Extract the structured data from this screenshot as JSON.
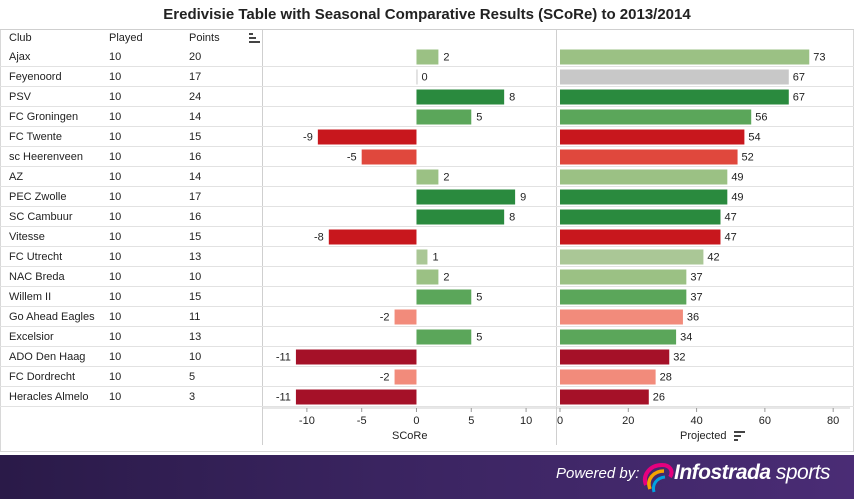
{
  "title": "Eredivisie Table with Seasonal Comparative Results (SCoRe) to 2013/2014",
  "columns": {
    "club": "Club",
    "played": "Played",
    "points": "Points"
  },
  "footer": {
    "powered_by": "Powered by:",
    "brand_bold": "Infostrada",
    "brand_light": " sports"
  },
  "chart_data": [
    {
      "type": "bar",
      "orientation": "horizontal",
      "xlabel": "SCoRe",
      "xlim": [
        -13,
        12
      ],
      "ticks": [
        -10,
        -5,
        0,
        5,
        10
      ],
      "categories": [
        "Ajax",
        "Feyenoord",
        "PSV",
        "FC Groningen",
        "FC Twente",
        "sc Heerenveen",
        "AZ",
        "PEC Zwolle",
        "SC Cambuur",
        "Vitesse",
        "FC Utrecht",
        "NAC Breda",
        "Willem II",
        "Go Ahead Eagles",
        "Excelsior",
        "ADO Den Haag",
        "FC Dordrecht",
        "Heracles Almelo"
      ],
      "values": [
        2,
        0,
        8,
        5,
        -9,
        -5,
        2,
        9,
        8,
        -8,
        1,
        2,
        5,
        -2,
        5,
        -11,
        -2,
        -11
      ]
    },
    {
      "type": "bar",
      "orientation": "horizontal",
      "xlabel": "Projected",
      "xlim": [
        0,
        82
      ],
      "ticks": [
        0,
        20,
        40,
        60,
        80
      ],
      "categories": [
        "Ajax",
        "Feyenoord",
        "PSV",
        "FC Groningen",
        "FC Twente",
        "sc Heerenveen",
        "AZ",
        "PEC Zwolle",
        "SC Cambuur",
        "Vitesse",
        "FC Utrecht",
        "NAC Breda",
        "Willem II",
        "Go Ahead Eagles",
        "Excelsior",
        "ADO Den Haag",
        "FC Dordrecht",
        "Heracles Almelo"
      ],
      "values": [
        73,
        67,
        67,
        56,
        54,
        52,
        49,
        49,
        47,
        47,
        42,
        37,
        37,
        36,
        34,
        32,
        28,
        26
      ]
    }
  ],
  "table": [
    {
      "club": "Ajax",
      "played": "10",
      "points": "20"
    },
    {
      "club": "Feyenoord",
      "played": "10",
      "points": "17"
    },
    {
      "club": "PSV",
      "played": "10",
      "points": "24"
    },
    {
      "club": "FC Groningen",
      "played": "10",
      "points": "14"
    },
    {
      "club": "FC Twente",
      "played": "10",
      "points": "15"
    },
    {
      "club": "sc Heerenveen",
      "played": "10",
      "points": "16"
    },
    {
      "club": "AZ",
      "played": "10",
      "points": "14"
    },
    {
      "club": "PEC Zwolle",
      "played": "10",
      "points": "17"
    },
    {
      "club": "SC Cambuur",
      "played": "10",
      "points": "16"
    },
    {
      "club": "Vitesse",
      "played": "10",
      "points": "15"
    },
    {
      "club": "FC Utrecht",
      "played": "10",
      "points": "13"
    },
    {
      "club": "NAC Breda",
      "played": "10",
      "points": "10"
    },
    {
      "club": "Willem II",
      "played": "10",
      "points": "15"
    },
    {
      "club": "Go Ahead Eagles",
      "played": "10",
      "points": "11"
    },
    {
      "club": "Excelsior",
      "played": "10",
      "points": "13"
    },
    {
      "club": "ADO Den Haag",
      "played": "10",
      "points": "10"
    },
    {
      "club": "FC Dordrecht",
      "played": "10",
      "points": "5"
    },
    {
      "club": "Heracles Almelo",
      "played": "10",
      "points": "3"
    }
  ],
  "colors": {
    "zero": "#c8c8c8",
    "pos1": "#aac796",
    "pos2": "#9bc184",
    "pos5": "#5ba65a",
    "pos8": "#2a8a3e",
    "neg2": "#f28b7b",
    "neg5": "#e0483d",
    "neg8": "#c8171d",
    "neg11": "#a51128"
  }
}
